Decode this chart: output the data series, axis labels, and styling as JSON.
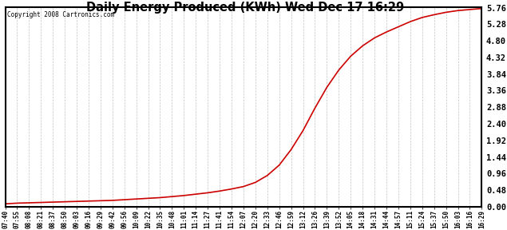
{
  "title": "Daily Energy Produced (KWh) Wed Dec 17 16:29",
  "copyright_text": "Copyright 2008 Cartronics.com",
  "line_color": "#cc0000",
  "background_color": "#ffffff",
  "plot_bg_color": "#ffffff",
  "grid_color": "#bbbbbb",
  "yticks": [
    0.0,
    0.48,
    0.96,
    1.44,
    1.92,
    2.4,
    2.88,
    3.36,
    3.84,
    4.32,
    4.8,
    5.28,
    5.76
  ],
  "ylim": [
    0.0,
    5.76
  ],
  "xtick_labels": [
    "07:40",
    "07:55",
    "08:08",
    "08:21",
    "08:37",
    "08:50",
    "09:03",
    "09:16",
    "09:29",
    "09:42",
    "09:56",
    "10:09",
    "10:22",
    "10:35",
    "10:48",
    "11:01",
    "11:14",
    "11:27",
    "11:41",
    "11:54",
    "12:07",
    "12:20",
    "12:33",
    "12:46",
    "12:59",
    "13:12",
    "13:26",
    "13:39",
    "13:52",
    "14:05",
    "14:18",
    "14:31",
    "14:44",
    "14:57",
    "15:11",
    "15:24",
    "15:37",
    "15:50",
    "16:03",
    "16:16",
    "16:29"
  ],
  "curve_y_values": [
    0.08,
    0.1,
    0.11,
    0.12,
    0.13,
    0.14,
    0.15,
    0.16,
    0.17,
    0.18,
    0.2,
    0.22,
    0.24,
    0.26,
    0.29,
    0.32,
    0.36,
    0.4,
    0.45,
    0.51,
    0.58,
    0.7,
    0.9,
    1.2,
    1.65,
    2.2,
    2.85,
    3.45,
    3.95,
    4.35,
    4.65,
    4.88,
    5.05,
    5.2,
    5.35,
    5.47,
    5.55,
    5.62,
    5.67,
    5.7,
    5.73
  ]
}
